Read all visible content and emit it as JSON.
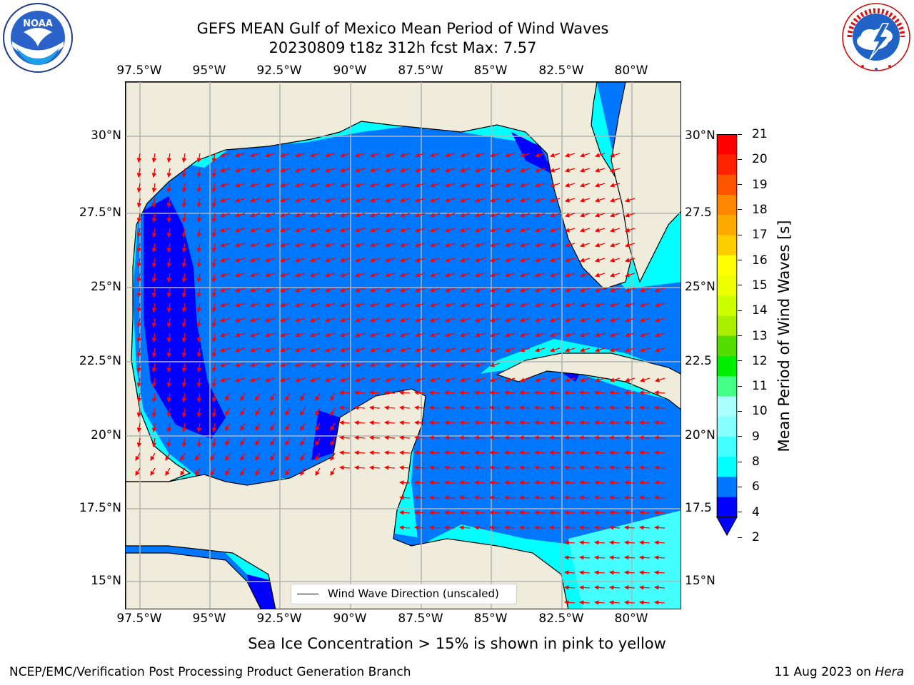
{
  "header": {
    "title_line1": "GEFS MEAN Gulf of Mexico Mean Period of Wind Waves",
    "title_line2": "20230809 t18z 312h fcst   Max: 7.57"
  },
  "logos": {
    "left": {
      "name": "noaa-logo",
      "text": "NOAA",
      "ring_text": "NATIONAL OCEANIC AND ATMOSPHERIC ADMINISTRATION · U.S. DEPARTMENT OF COMMERCE"
    },
    "right": {
      "name": "nws-logo",
      "ring_text": "NATIONAL WEATHER SERVICE"
    }
  },
  "map": {
    "lon_ticks": [
      "97.5°W",
      "95°W",
      "92.5°W",
      "90°W",
      "87.5°W",
      "85°W",
      "82.5°W",
      "80°W"
    ],
    "lat_ticks_left": [
      "30°N",
      "27.5°N",
      "25°N",
      "22.5°N",
      "20°N",
      "17.5°N",
      "15°N"
    ],
    "lat_ticks_right": [
      "30°N",
      "27.5",
      "25°N",
      "22.5",
      "20°N",
      "17.5",
      "15°N"
    ],
    "colors": {
      "land": "#efecdb",
      "grid": "#b3b3b3",
      "arrow": "#ff0000",
      "coast": "#000000"
    }
  },
  "legend": {
    "label": "Wind Wave Direction (unscaled)"
  },
  "colorbar": {
    "label": "Mean Period of Wind Waves [s]",
    "tick_labels": [
      "21",
      "20",
      "19",
      "18",
      "17",
      "16",
      "15",
      "14",
      "13",
      "12",
      "11",
      "10",
      "9",
      "8",
      "6",
      "4",
      "2"
    ],
    "level_colors": [
      "#0000ff",
      "#0077ff",
      "#00ffff",
      "#44ffff",
      "#88ffff",
      "#aaffff",
      "#44ff88",
      "#00ee00",
      "#55dd00",
      "#aaee00",
      "#ccff00",
      "#eeff00",
      "#ffff00",
      "#ffcc00",
      "#ffaa00",
      "#ff8800",
      "#ff5500",
      "#ff2200",
      "#ff0000"
    ]
  },
  "notes": {
    "sea_ice": "Sea Ice Concentration > 15% is shown in pink to yellow"
  },
  "footer": {
    "left": "NCEP/EMC/Verification Post Processing Product Generation Branch",
    "right_date": "11 Aug 2023 on",
    "right_machine": "Hera"
  }
}
